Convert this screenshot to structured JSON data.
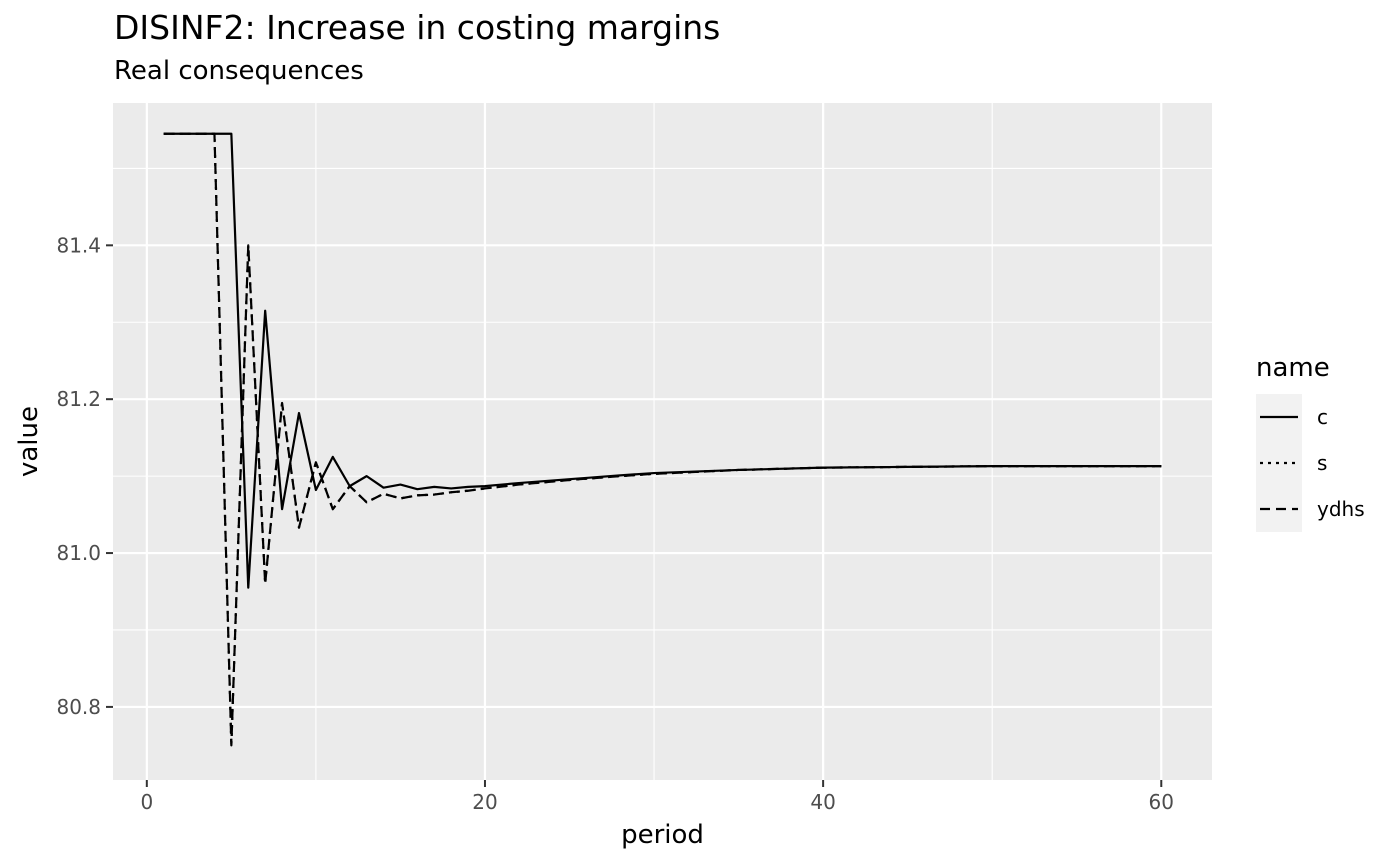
{
  "chart_data": {
    "type": "line",
    "title": "DISINF2: Increase in costing margins",
    "subtitle": "Real consequences",
    "xlabel": "period",
    "ylabel": "value",
    "xlim": [
      -2,
      63
    ],
    "ylim": [
      80.705,
      81.585
    ],
    "x_ticks": [
      0,
      20,
      40,
      60
    ],
    "y_ticks": [
      80.8,
      81.0,
      81.2,
      81.4
    ],
    "y_tick_labels": [
      "80.8",
      "81.0",
      "81.2",
      "81.4"
    ],
    "grid": true,
    "legend": {
      "title": "name",
      "position": "right"
    },
    "series": [
      {
        "name": "c",
        "linetype": "solid",
        "x": [
          1,
          2,
          3,
          4,
          5,
          6,
          7,
          8,
          9,
          10,
          11,
          12,
          13,
          14,
          15,
          16,
          17,
          18,
          19,
          20,
          22,
          25,
          28,
          30,
          35,
          40,
          45,
          50,
          55,
          60
        ],
        "values": [
          81.545,
          81.545,
          81.545,
          81.545,
          81.545,
          80.955,
          81.315,
          81.057,
          81.182,
          81.082,
          81.125,
          81.087,
          81.1,
          81.085,
          81.089,
          81.083,
          81.086,
          81.084,
          81.086,
          81.087,
          81.091,
          81.096,
          81.101,
          81.104,
          81.108,
          81.111,
          81.112,
          81.113,
          81.113,
          81.113
        ]
      },
      {
        "name": "s",
        "linetype": "dotted",
        "x": [
          1,
          2,
          3,
          4,
          5,
          6,
          7,
          8,
          9,
          10,
          11,
          12,
          13,
          14,
          15,
          16,
          17,
          18,
          19,
          20,
          22,
          25,
          28,
          30,
          35,
          40,
          45,
          50,
          55,
          60
        ],
        "values": [
          81.545,
          81.545,
          81.545,
          81.545,
          80.75,
          81.4,
          80.96,
          81.195,
          81.033,
          81.118,
          81.057,
          81.087,
          81.066,
          81.077,
          81.071,
          81.075,
          81.076,
          81.079,
          81.081,
          81.084,
          81.089,
          81.095,
          81.1,
          81.103,
          81.108,
          81.111,
          81.112,
          81.113,
          81.113,
          81.113
        ]
      },
      {
        "name": "ydhs",
        "linetype": "dashed",
        "x": [
          1,
          2,
          3,
          4,
          5,
          6,
          7,
          8,
          9,
          10,
          11,
          12,
          13,
          14,
          15,
          16,
          17,
          18,
          19,
          20,
          22,
          25,
          28,
          30,
          35,
          40,
          45,
          50,
          55,
          60
        ],
        "values": [
          81.545,
          81.545,
          81.545,
          81.545,
          80.75,
          81.4,
          80.96,
          81.195,
          81.033,
          81.118,
          81.057,
          81.087,
          81.066,
          81.077,
          81.071,
          81.075,
          81.076,
          81.079,
          81.081,
          81.084,
          81.089,
          81.095,
          81.1,
          81.103,
          81.108,
          81.111,
          81.112,
          81.113,
          81.113,
          81.113
        ]
      }
    ]
  },
  "colors": {
    "panel_background": "#ebebeb",
    "grid_major": "#ffffff",
    "grid_minor": "#f5f5f5",
    "legend_key_background": "#f2f2f2",
    "line": "#000000",
    "tick_label": "#4d4d4d"
  }
}
